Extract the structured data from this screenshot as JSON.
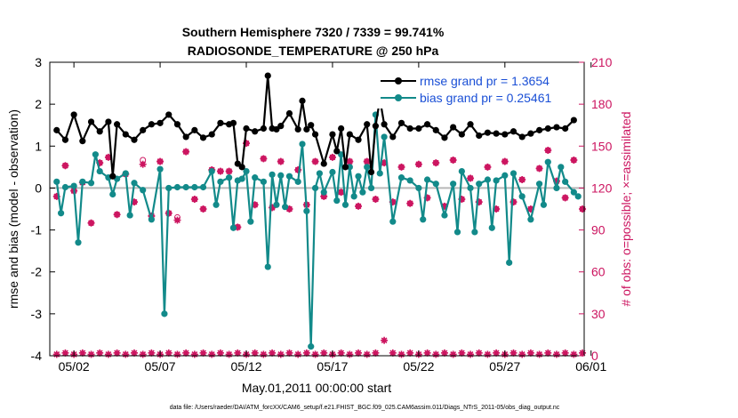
{
  "chart_data": {
    "type": "line",
    "title": "Southern Hemisphere 7320 / 7339 = 99.741%",
    "subtitle": "RADIOSONDE_TEMPERATURE @ 250 hPa",
    "xlabel": "May.01,2011 00:00:00 start",
    "ylabel": "rmse and bias (model - observation)",
    "y2label": "# of obs: o=possible; ×=assimilated",
    "footer": "data file: /Users/raeder/DAI/ATM_forcXX/CAM6_setup/f.e21.FHIST_BGC.f09_025.CAM6assim.011/Diags_NTrS_2011-05/obs_diag_output.nc",
    "xlim": [
      0.6,
      31.6
    ],
    "ylim": [
      -4,
      3
    ],
    "y2lim": [
      0,
      210
    ],
    "x_ticks": [
      2,
      7,
      12,
      17,
      22,
      27,
      32
    ],
    "x_tick_labels": [
      "05/02",
      "05/07",
      "05/12",
      "05/17",
      "05/22",
      "05/27",
      "06/01"
    ],
    "y_ticks": [
      -4,
      -3,
      -2,
      -1,
      0,
      1,
      2,
      3
    ],
    "y2_ticks": [
      0,
      30,
      60,
      90,
      120,
      150,
      180,
      210
    ],
    "colors": {
      "rmse": "#000000",
      "bias": "#128a8a",
      "obs": "#cc1560",
      "zero": "#b8b8b8",
      "right_axis": "#cc1560"
    },
    "series": [
      {
        "name": "rmse grand pr = 1.3654",
        "color": "#000000",
        "x": [
          1.0,
          1.5,
          2.0,
          2.5,
          3.0,
          3.5,
          4.0,
          4.25,
          4.5,
          5.0,
          5.5,
          6.0,
          6.5,
          7.0,
          7.5,
          8.0,
          8.5,
          9.0,
          9.5,
          10.0,
          10.5,
          11.0,
          11.25,
          11.5,
          11.75,
          12.0,
          12.5,
          13.0,
          13.25,
          13.5,
          13.75,
          14.0,
          14.5,
          15.0,
          15.25,
          15.5,
          15.75,
          16.0,
          16.5,
          17.0,
          17.25,
          17.5,
          17.75,
          18.0,
          18.5,
          19.0,
          19.25,
          19.5,
          19.75,
          20.0,
          20.5,
          21.0,
          21.5,
          22.0,
          22.5,
          23.0,
          23.5,
          24.0,
          24.5,
          25.0,
          25.5,
          26.0,
          26.5,
          27.0,
          27.5,
          28.0,
          28.5,
          29.0,
          29.5,
          30.0,
          30.5,
          31.0
        ],
        "values": [
          1.38,
          1.15,
          1.75,
          1.12,
          1.58,
          1.35,
          1.58,
          0.28,
          1.52,
          1.28,
          1.15,
          1.38,
          1.52,
          1.55,
          1.75,
          1.52,
          1.22,
          1.38,
          1.2,
          1.28,
          1.55,
          1.52,
          1.55,
          0.58,
          0.5,
          1.42,
          1.35,
          1.42,
          2.68,
          1.42,
          1.4,
          1.48,
          1.78,
          1.4,
          2.08,
          1.4,
          1.5,
          1.28,
          0.58,
          1.28,
          0.88,
          1.42,
          0.5,
          1.28,
          1.15,
          1.52,
          0.38,
          1.48,
          2.12,
          1.52,
          1.22,
          1.55,
          1.42,
          1.42,
          1.52,
          1.38,
          1.2,
          1.45,
          1.28,
          1.52,
          1.25,
          1.32,
          1.3,
          1.28,
          1.35,
          1.22,
          1.3,
          1.38,
          1.42,
          1.45,
          1.42,
          1.62
        ]
      },
      {
        "name": "bias grand pr = 0.25461",
        "color": "#128a8a",
        "x": [
          1.0,
          1.25,
          1.5,
          2.0,
          2.25,
          2.5,
          3.0,
          3.25,
          3.5,
          4.0,
          4.25,
          4.5,
          5.0,
          5.25,
          5.5,
          6.0,
          6.5,
          7.0,
          7.25,
          7.5,
          8.0,
          8.5,
          9.0,
          9.5,
          10.0,
          10.25,
          10.5,
          11.0,
          11.25,
          11.5,
          11.75,
          12.0,
          12.25,
          12.5,
          13.0,
          13.25,
          13.5,
          13.75,
          14.0,
          14.25,
          14.5,
          15.0,
          15.25,
          15.5,
          15.75,
          16.0,
          16.25,
          16.5,
          17.0,
          17.25,
          17.5,
          17.75,
          18.0,
          18.25,
          18.5,
          18.75,
          19.0,
          19.25,
          19.5,
          19.75,
          20.0,
          20.5,
          21.0,
          21.5,
          22.0,
          22.25,
          22.5,
          23.0,
          23.5,
          24.0,
          24.25,
          24.5,
          25.0,
          25.25,
          25.5,
          26.0,
          26.25,
          26.5,
          27.0,
          27.25,
          27.5,
          28.0,
          28.5,
          29.0,
          29.25,
          29.5,
          30.0,
          30.25,
          30.5,
          31.0,
          31.25
        ],
        "values": [
          0.15,
          -0.6,
          0.02,
          0.05,
          -1.3,
          0.15,
          0.12,
          0.8,
          0.4,
          0.25,
          -0.15,
          0.22,
          0.35,
          -0.65,
          0.12,
          -0.05,
          -0.75,
          0.45,
          -3.0,
          0.0,
          0.02,
          0.02,
          0.02,
          0.02,
          0.4,
          -0.4,
          0.15,
          0.25,
          -0.95,
          0.18,
          0.22,
          0.4,
          -0.8,
          0.25,
          0.15,
          -1.88,
          0.32,
          -0.4,
          0.3,
          -0.45,
          0.28,
          0.15,
          1.05,
          -0.55,
          -3.78,
          0.0,
          0.35,
          -0.1,
          0.38,
          -0.3,
          0.8,
          -0.4,
          0.5,
          -0.2,
          0.28,
          -0.1,
          0.5,
          0.0,
          1.75,
          0.35,
          1.22,
          -0.8,
          0.25,
          0.18,
          0.0,
          -0.75,
          0.2,
          0.1,
          -0.65,
          0.1,
          -1.05,
          0.4,
          0.0,
          -1.05,
          0.1,
          0.2,
          -0.95,
          0.18,
          0.3,
          -1.78,
          0.35,
          -0.2,
          -0.75,
          0.1,
          -0.4,
          0.62,
          0.0,
          0.5,
          0.15,
          -0.1,
          -0.2
        ]
      }
    ],
    "obs_possible": {
      "name": "possible",
      "x": [
        1.0,
        1.5,
        2.0,
        2.5,
        3.0,
        3.5,
        4.0,
        4.5,
        5.0,
        5.5,
        6.0,
        6.5,
        7.0,
        7.5,
        8.0,
        8.5,
        9.0,
        9.5,
        10.0,
        10.5,
        11.0,
        11.5,
        12.0,
        12.5,
        13.0,
        13.5,
        14.0,
        14.5,
        15.0,
        15.5,
        16.0,
        16.5,
        17.0,
        17.5,
        18.0,
        18.5,
        19.0,
        19.5,
        20.0,
        20.5,
        21.0,
        21.5,
        22.0,
        22.5,
        23.0,
        23.5,
        24.0,
        24.5,
        25.0,
        25.5,
        26.0,
        26.5,
        27.0,
        27.5,
        28.0,
        28.5,
        29.0,
        29.5,
        30.0,
        30.5,
        31.0,
        31.5
      ],
      "values": [
        114,
        136,
        118,
        124,
        95,
        138,
        142,
        101,
        130,
        110,
        140,
        100,
        139,
        102,
        99,
        146,
        112,
        105,
        133,
        132,
        132,
        92,
        152,
        108,
        141,
        106,
        139,
        105,
        133,
        108,
        139,
        114,
        142,
        117,
        139,
        107,
        139,
        112,
        138,
        110,
        135,
        109,
        137,
        113,
        138,
        107,
        140,
        112,
        127,
        110,
        135,
        105,
        139,
        110,
        126,
        105,
        134,
        147,
        125,
        113,
        140,
        105
      ]
    },
    "obs_assimilated": {
      "name": "assimilated",
      "x": [
        1.0,
        1.5,
        2.0,
        2.5,
        3.0,
        3.5,
        4.0,
        4.5,
        5.0,
        5.5,
        6.0,
        6.5,
        7.0,
        7.5,
        8.0,
        8.5,
        9.0,
        9.5,
        10.0,
        10.5,
        11.0,
        11.5,
        12.0,
        12.5,
        13.0,
        13.5,
        14.0,
        14.5,
        15.0,
        15.5,
        16.0,
        16.5,
        17.0,
        17.5,
        18.0,
        18.5,
        19.0,
        19.5,
        20.0,
        20.5,
        21.0,
        21.5,
        22.0,
        22.5,
        23.0,
        23.5,
        24.0,
        24.5,
        25.0,
        25.5,
        26.0,
        26.5,
        27.0,
        27.5,
        28.0,
        28.5,
        29.0,
        29.5,
        30.0,
        30.5,
        31.0,
        31.5
      ],
      "values": [
        114,
        136,
        118,
        124,
        95,
        138,
        142,
        101,
        130,
        110,
        137,
        100,
        139,
        102,
        97,
        146,
        112,
        105,
        133,
        132,
        132,
        92,
        152,
        108,
        141,
        106,
        139,
        105,
        133,
        108,
        139,
        114,
        142,
        117,
        139,
        107,
        139,
        112,
        138,
        110,
        135,
        109,
        137,
        113,
        138,
        107,
        140,
        112,
        127,
        110,
        135,
        105,
        139,
        110,
        126,
        105,
        134,
        147,
        125,
        113,
        140,
        105
      ]
    },
    "obs_bottom": {
      "name": "bottom counts",
      "x": [
        1.0,
        1.5,
        2.0,
        2.5,
        3.0,
        3.5,
        4.0,
        4.5,
        5.0,
        5.5,
        6.0,
        6.5,
        7.0,
        7.5,
        8.0,
        8.5,
        9.0,
        9.5,
        10.0,
        10.5,
        11.0,
        11.5,
        12.0,
        12.5,
        13.0,
        13.5,
        14.0,
        14.5,
        15.0,
        15.5,
        16.0,
        16.5,
        17.0,
        17.5,
        18.0,
        18.5,
        19.0,
        19.5,
        20.0,
        20.5,
        21.0,
        21.5,
        22.0,
        22.5,
        23.0,
        23.5,
        24.0,
        24.5,
        25.0,
        25.5,
        26.0,
        26.5,
        27.0,
        27.5,
        28.0,
        28.5,
        29.0,
        29.5,
        30.0,
        30.5,
        31.0,
        31.5
      ],
      "values": [
        1,
        2,
        1,
        2,
        1,
        2,
        1,
        2,
        1,
        2,
        1,
        2,
        1,
        2,
        1,
        2,
        1,
        2,
        1,
        2,
        1,
        2,
        1,
        2,
        1,
        2,
        1,
        2,
        1,
        2,
        1,
        2,
        1,
        2,
        1,
        2,
        1,
        2,
        11,
        2,
        1,
        2,
        1,
        2,
        1,
        2,
        1,
        2,
        1,
        2,
        1,
        2,
        1,
        2,
        1,
        2,
        1,
        2,
        1,
        2,
        1,
        2
      ]
    }
  }
}
